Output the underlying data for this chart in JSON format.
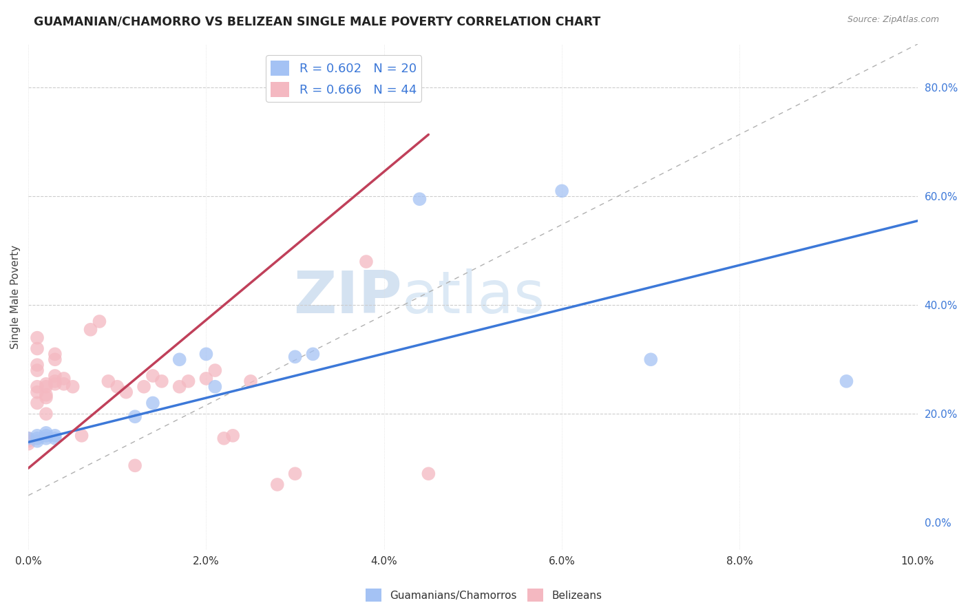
{
  "title": "GUAMANIAN/CHAMORRO VS BELIZEAN SINGLE MALE POVERTY CORRELATION CHART",
  "source": "Source: ZipAtlas.com",
  "ylabel": "Single Male Poverty",
  "r_blue": 0.602,
  "n_blue": 20,
  "r_pink": 0.666,
  "n_pink": 44,
  "xlim": [
    0.0,
    0.1
  ],
  "ylim": [
    -0.05,
    0.88
  ],
  "blue_color": "#a4c2f4",
  "pink_color": "#f4b8c1",
  "blue_line_color": "#3c78d8",
  "pink_line_color": "#c0405a",
  "watermark_zip": "ZIP",
  "watermark_atlas": "atlas",
  "blue_points_x": [
    0.0,
    0.001,
    0.001,
    0.001,
    0.002,
    0.002,
    0.002,
    0.003,
    0.003,
    0.012,
    0.014,
    0.017,
    0.02,
    0.021,
    0.03,
    0.032,
    0.044,
    0.06,
    0.07,
    0.092
  ],
  "blue_points_y": [
    0.155,
    0.155,
    0.16,
    0.15,
    0.155,
    0.16,
    0.165,
    0.155,
    0.16,
    0.195,
    0.22,
    0.3,
    0.31,
    0.25,
    0.305,
    0.31,
    0.595,
    0.61,
    0.3,
    0.26
  ],
  "pink_points_x": [
    0.0,
    0.0,
    0.0,
    0.001,
    0.001,
    0.001,
    0.001,
    0.001,
    0.001,
    0.001,
    0.002,
    0.002,
    0.002,
    0.002,
    0.002,
    0.003,
    0.003,
    0.003,
    0.003,
    0.003,
    0.004,
    0.004,
    0.005,
    0.006,
    0.007,
    0.008,
    0.009,
    0.01,
    0.011,
    0.012,
    0.013,
    0.014,
    0.015,
    0.017,
    0.018,
    0.02,
    0.021,
    0.022,
    0.023,
    0.025,
    0.028,
    0.03,
    0.038,
    0.045
  ],
  "pink_points_y": [
    0.15,
    0.155,
    0.145,
    0.24,
    0.25,
    0.22,
    0.28,
    0.29,
    0.32,
    0.34,
    0.25,
    0.255,
    0.2,
    0.23,
    0.235,
    0.3,
    0.31,
    0.255,
    0.26,
    0.27,
    0.255,
    0.265,
    0.25,
    0.16,
    0.355,
    0.37,
    0.26,
    0.25,
    0.24,
    0.105,
    0.25,
    0.27,
    0.26,
    0.25,
    0.26,
    0.265,
    0.28,
    0.155,
    0.16,
    0.26,
    0.07,
    0.09,
    0.48,
    0.09
  ]
}
